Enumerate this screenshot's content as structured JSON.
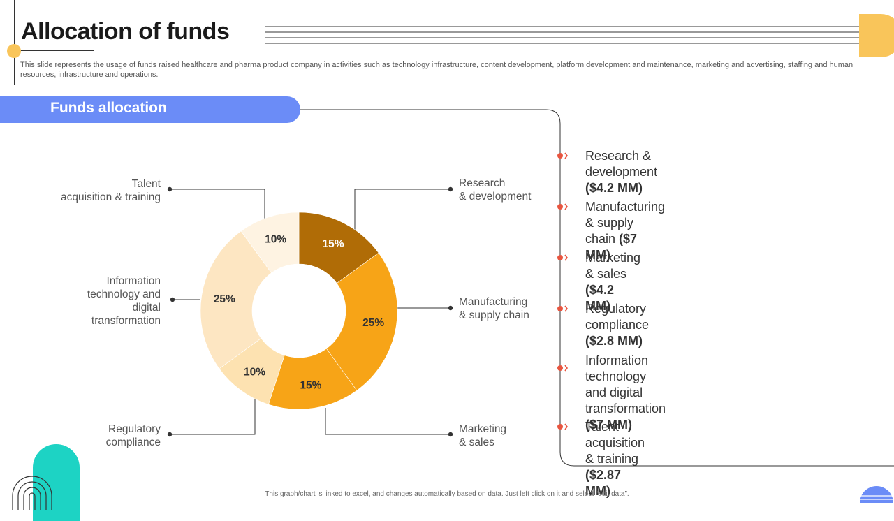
{
  "header": {
    "title": "Allocation of funds",
    "subtitle": "This slide represents the usage of funds raised healthcare and pharma product company in activities such as technology infrastructure, content development, platform development and maintenance, marketing and advertising, staffing and human resources, infrastructure and operations."
  },
  "section": {
    "title": "Funds allocation"
  },
  "labels": {
    "rd": [
      "Research",
      "& development"
    ],
    "mfg": [
      "Manufacturing",
      "& supply chain"
    ],
    "mkt": [
      "Marketing",
      "& sales"
    ],
    "reg": [
      "Regulatory",
      "compliance"
    ],
    "it": [
      "Information",
      "technology and",
      "digital",
      "transformation"
    ],
    "talent": [
      "Talent",
      "acquisition & training"
    ]
  },
  "list": [
    {
      "name": "Research & development",
      "amount": "($4.2 MM)"
    },
    {
      "name": "Manufacturing & supply chain",
      "amount": "($7 MM)"
    },
    {
      "name": "Marketing & sales",
      "amount": "($4.2 MM)"
    },
    {
      "name": "Regulatory compliance",
      "amount": "($2.8 MM)"
    },
    {
      "name": "Information technology and digital transformation",
      "name_lines": [
        "Information technology and digital",
        "transformation"
      ],
      "amount": "($7 MM)"
    },
    {
      "name": "Talent acquisition & training",
      "amount": "($2.87 MM)"
    }
  ],
  "footer": "This graph/chart is linked to excel, and changes automatically based on data. Just left click on it and select “edit data”.",
  "colors": {
    "accent_blue": "#6b8cf7",
    "accent_yellow": "#f9c55a",
    "accent_teal": "#1dd3c4",
    "bullet_red": "#e8553f"
  },
  "chart_data": {
    "type": "pie",
    "style": "donut",
    "categories": [
      "Research & development",
      "Manufacturing & supply chain",
      "Marketing & sales",
      "Regulatory compliance",
      "Information technology and digital transformation",
      "Talent acquisition & training"
    ],
    "values": [
      15,
      25,
      15,
      10,
      25,
      10
    ],
    "value_labels": [
      "15%",
      "25%",
      "15%",
      "10%",
      "25%",
      "10%"
    ],
    "colors": [
      "#b06c06",
      "#f7a417",
      "#f7a417",
      "#fde2b1",
      "#fde6c2",
      "#fef3e2"
    ]
  }
}
